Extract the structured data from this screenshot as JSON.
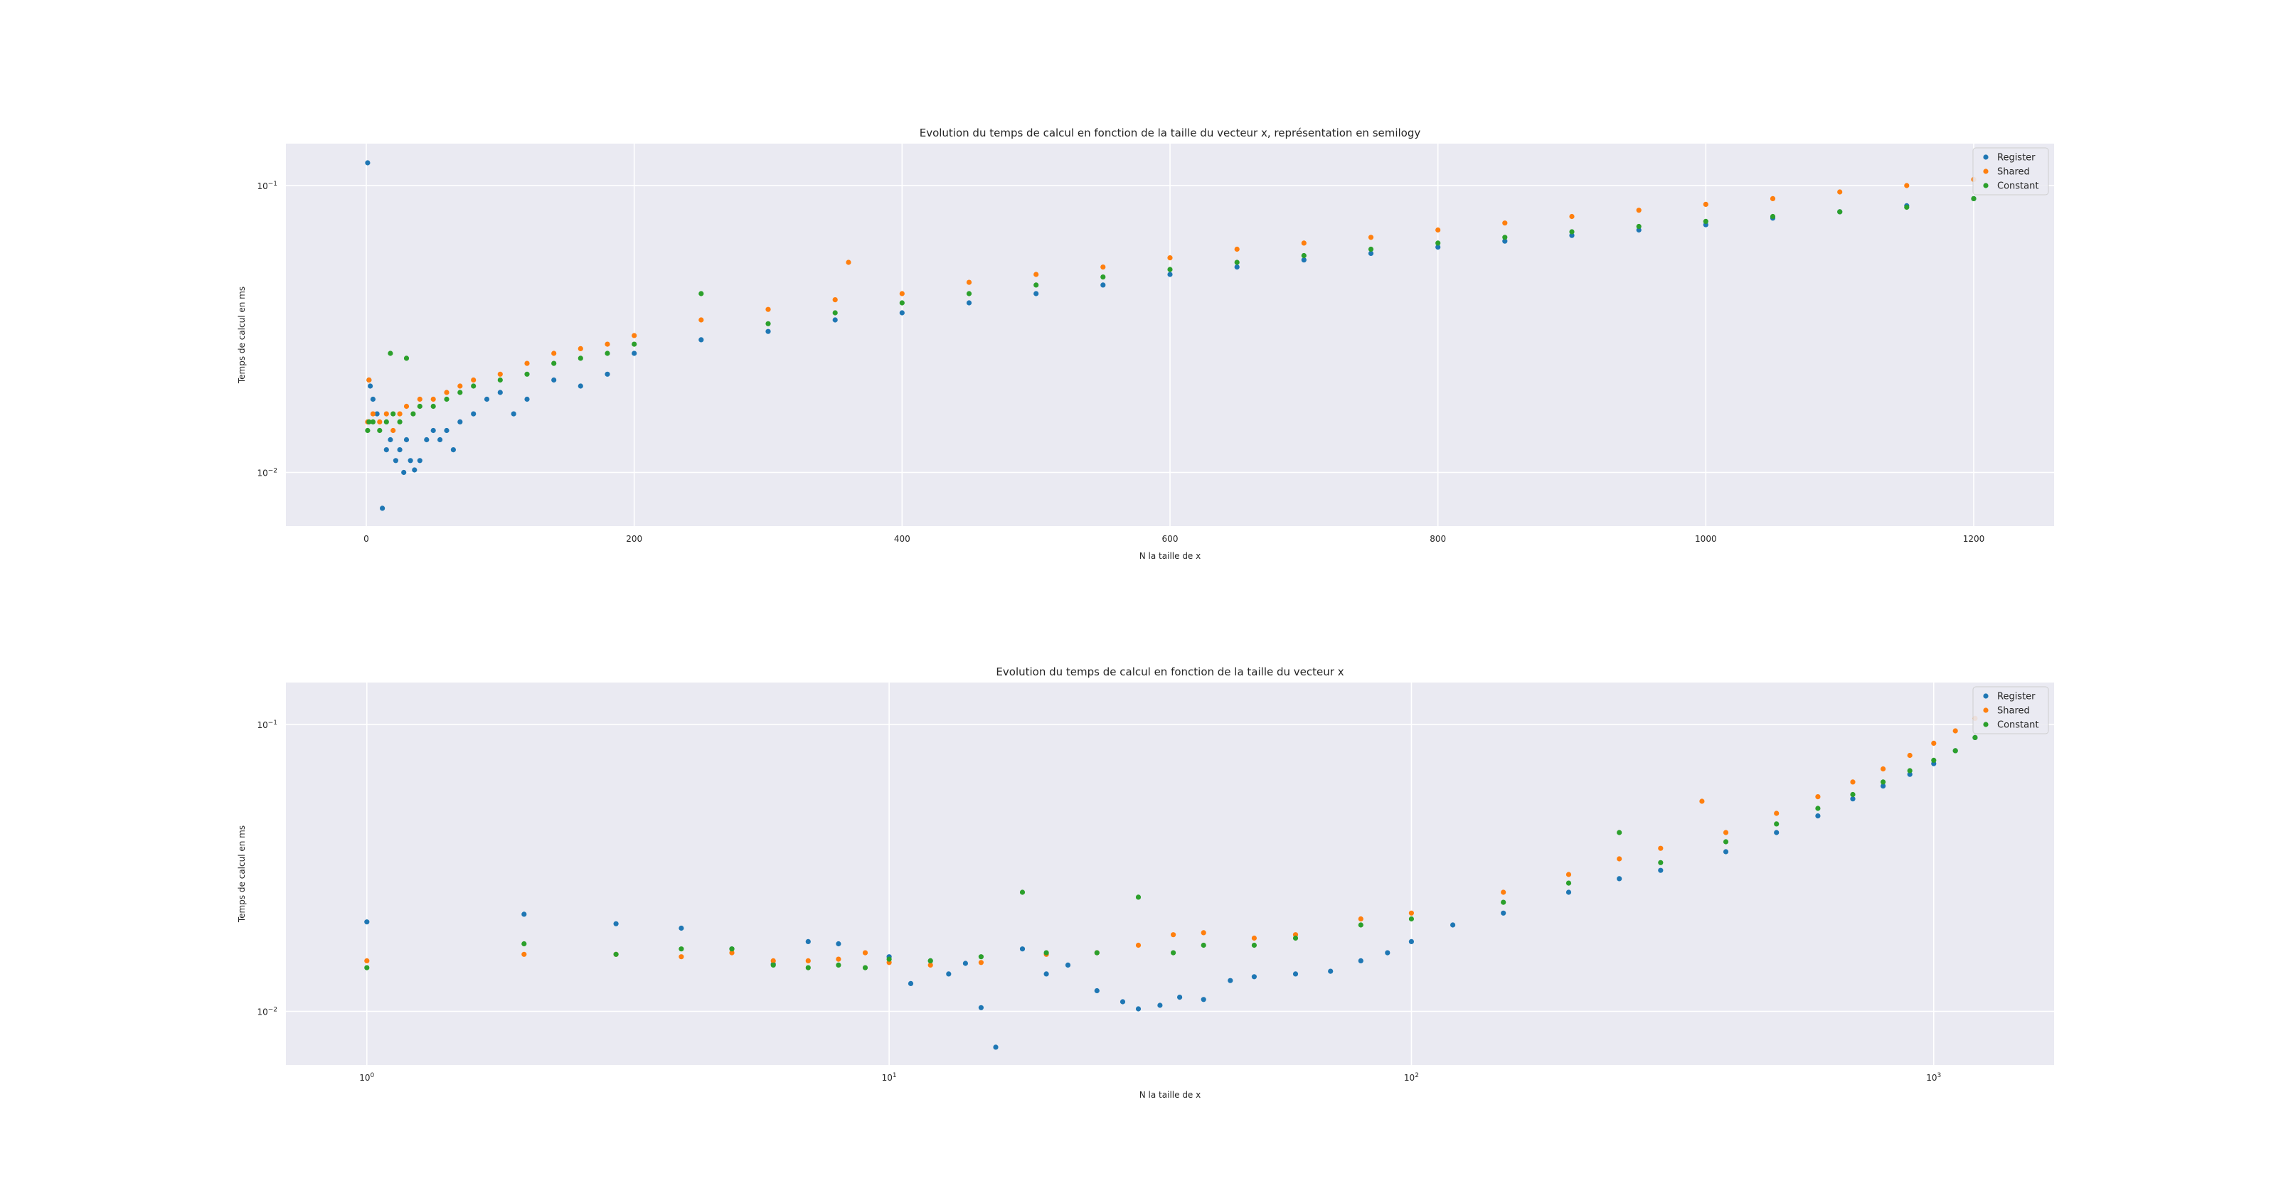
{
  "colors": {
    "background": "#ffffff",
    "plot_background": "#eaeaf2",
    "grid": "#ffffff",
    "text": "#262626",
    "register": "#1f77b4",
    "shared": "#ff7f0e",
    "constant": "#2ca02c"
  },
  "chart_data": [
    {
      "type": "scatter",
      "title": "Evolution du temps de calcul en fonction de la taille du vecteur x, représentation en semilogy",
      "xlabel": "N la taille de x",
      "ylabel": "Temps de calcul en ms",
      "xscale": "linear",
      "yscale": "log",
      "xlim": [
        -60,
        1260
      ],
      "ylim": [
        0.0065,
        0.14
      ],
      "xticks": [
        0,
        200,
        400,
        600,
        800,
        1000,
        1200
      ],
      "xtick_labels": [
        "0",
        "200",
        "400",
        "600",
        "800",
        "1000",
        "1200"
      ],
      "yticks": [
        0.01,
        0.1
      ],
      "ytick_labels": [
        {
          "base": "10",
          "exp": "−2"
        },
        {
          "base": "10",
          "exp": "−1"
        }
      ],
      "grid": true,
      "legend_position": "top-right",
      "series": [
        {
          "name": "Register",
          "color": "#1f77b4",
          "x": [
            1,
            2,
            3,
            5,
            8,
            12,
            15,
            18,
            22,
            25,
            28,
            30,
            33,
            36,
            40,
            45,
            50,
            55,
            60,
            65,
            70,
            80,
            90,
            100,
            110,
            120,
            140,
            160,
            180,
            200,
            250,
            300,
            350,
            400,
            450,
            500,
            550,
            600,
            650,
            700,
            750,
            800,
            850,
            900,
            950,
            1000,
            1050,
            1100,
            1150,
            1200
          ],
          "y": [
            0.12,
            0.021,
            0.02,
            0.018,
            0.016,
            0.0075,
            0.012,
            0.013,
            0.011,
            0.012,
            0.01,
            0.013,
            0.011,
            0.0102,
            0.011,
            0.013,
            0.014,
            0.013,
            0.014,
            0.012,
            0.015,
            0.016,
            0.018,
            0.019,
            0.016,
            0.018,
            0.021,
            0.02,
            0.022,
            0.026,
            0.029,
            0.031,
            0.034,
            0.036,
            0.039,
            0.042,
            0.045,
            0.049,
            0.052,
            0.055,
            0.058,
            0.061,
            0.064,
            0.067,
            0.07,
            0.073,
            0.077,
            0.081,
            0.085,
            0.09
          ]
        },
        {
          "name": "Shared",
          "color": "#ff7f0e",
          "x": [
            1,
            2,
            5,
            10,
            15,
            20,
            25,
            30,
            40,
            50,
            60,
            70,
            80,
            100,
            120,
            140,
            160,
            180,
            200,
            250,
            300,
            350,
            360,
            400,
            450,
            500,
            550,
            600,
            650,
            700,
            750,
            800,
            850,
            900,
            950,
            1000,
            1050,
            1100,
            1150,
            1200
          ],
          "y": [
            0.015,
            0.021,
            0.016,
            0.015,
            0.016,
            0.014,
            0.016,
            0.017,
            0.018,
            0.018,
            0.019,
            0.02,
            0.021,
            0.022,
            0.024,
            0.026,
            0.027,
            0.028,
            0.03,
            0.034,
            0.037,
            0.04,
            0.054,
            0.042,
            0.046,
            0.049,
            0.052,
            0.056,
            0.06,
            0.063,
            0.066,
            0.07,
            0.074,
            0.078,
            0.082,
            0.086,
            0.09,
            0.095,
            0.1,
            0.105
          ]
        },
        {
          "name": "Constant",
          "color": "#2ca02c",
          "x": [
            1,
            2,
            5,
            10,
            15,
            18,
            20,
            25,
            30,
            35,
            40,
            50,
            60,
            70,
            80,
            100,
            120,
            140,
            160,
            180,
            200,
            250,
            300,
            350,
            400,
            450,
            500,
            550,
            600,
            650,
            700,
            750,
            800,
            850,
            900,
            950,
            1000,
            1050,
            1100,
            1150,
            1200
          ],
          "y": [
            0.014,
            0.015,
            0.015,
            0.014,
            0.015,
            0.026,
            0.016,
            0.015,
            0.025,
            0.016,
            0.017,
            0.017,
            0.018,
            0.019,
            0.02,
            0.021,
            0.022,
            0.024,
            0.025,
            0.026,
            0.028,
            0.042,
            0.033,
            0.036,
            0.039,
            0.042,
            0.045,
            0.048,
            0.051,
            0.054,
            0.057,
            0.06,
            0.063,
            0.066,
            0.069,
            0.072,
            0.075,
            0.078,
            0.081,
            0.084,
            0.09
          ]
        }
      ]
    },
    {
      "type": "scatter",
      "title": "Evolution du temps de calcul en fonction de la taille du vecteur x",
      "xlabel": "N la taille de x",
      "ylabel": "Temps de calcul en ms",
      "xscale": "log",
      "yscale": "log",
      "xlim": [
        0.7,
        1700
      ],
      "ylim": [
        0.0065,
        0.14
      ],
      "xticks": [
        1,
        10,
        100,
        1000
      ],
      "xtick_labels": [
        {
          "base": "10",
          "exp": "0"
        },
        {
          "base": "10",
          "exp": "1"
        },
        {
          "base": "10",
          "exp": "2"
        },
        {
          "base": "10",
          "exp": "3"
        }
      ],
      "yticks": [
        0.01,
        0.1
      ],
      "ytick_labels": [
        {
          "base": "10",
          "exp": "−2"
        },
        {
          "base": "10",
          "exp": "−1"
        }
      ],
      "grid": true,
      "legend_position": "top-right",
      "series": [
        {
          "name": "Register",
          "color": "#1f77b4",
          "x": [
            1,
            2,
            3,
            4,
            5,
            6,
            7,
            8,
            10,
            11,
            12,
            13,
            14,
            15,
            16,
            18,
            20,
            22,
            25,
            28,
            30,
            33,
            36,
            40,
            45,
            50,
            60,
            70,
            80,
            90,
            100,
            120,
            150,
            200,
            250,
            300,
            400,
            500,
            600,
            700,
            800,
            900,
            1000,
            1100,
            1200
          ],
          "y": [
            0.0205,
            0.0218,
            0.0202,
            0.0195,
            0.0165,
            0.0146,
            0.0175,
            0.0172,
            0.0155,
            0.0125,
            0.015,
            0.0135,
            0.0147,
            0.0103,
            0.0075,
            0.0165,
            0.0135,
            0.0145,
            0.0118,
            0.0108,
            0.0102,
            0.0105,
            0.0112,
            0.011,
            0.0128,
            0.0132,
            0.0135,
            0.0138,
            0.015,
            0.016,
            0.0175,
            0.02,
            0.022,
            0.026,
            0.029,
            0.031,
            0.036,
            0.042,
            0.048,
            0.055,
            0.061,
            0.067,
            0.073,
            0.081,
            0.09
          ]
        },
        {
          "name": "Shared",
          "color": "#ff7f0e",
          "x": [
            1,
            2,
            3,
            4,
            5,
            6,
            7,
            8,
            9,
            10,
            12,
            15,
            20,
            25,
            30,
            35,
            40,
            50,
            60,
            80,
            100,
            150,
            200,
            250,
            300,
            360,
            400,
            500,
            600,
            700,
            800,
            900,
            1000,
            1100,
            1200
          ],
          "y": [
            0.015,
            0.0158,
            0.0158,
            0.0155,
            0.016,
            0.015,
            0.015,
            0.0152,
            0.016,
            0.0148,
            0.0145,
            0.0148,
            0.0158,
            0.016,
            0.017,
            0.0185,
            0.0188,
            0.018,
            0.0185,
            0.021,
            0.022,
            0.026,
            0.03,
            0.034,
            0.037,
            0.054,
            0.042,
            0.049,
            0.056,
            0.063,
            0.07,
            0.078,
            0.086,
            0.095,
            0.105
          ]
        },
        {
          "name": "Constant",
          "color": "#2ca02c",
          "x": [
            1,
            2,
            3,
            4,
            5,
            6,
            7,
            8,
            9,
            10,
            12,
            15,
            18,
            20,
            25,
            30,
            35,
            40,
            50,
            60,
            80,
            100,
            150,
            200,
            250,
            300,
            400,
            500,
            600,
            700,
            800,
            900,
            1000,
            1100,
            1200
          ],
          "y": [
            0.0142,
            0.0172,
            0.0158,
            0.0165,
            0.0165,
            0.0145,
            0.0142,
            0.0145,
            0.0142,
            0.0152,
            0.015,
            0.0155,
            0.026,
            0.016,
            0.016,
            0.025,
            0.016,
            0.017,
            0.017,
            0.018,
            0.02,
            0.021,
            0.024,
            0.028,
            0.042,
            0.033,
            0.039,
            0.045,
            0.051,
            0.057,
            0.063,
            0.069,
            0.075,
            0.081,
            0.09
          ]
        }
      ]
    }
  ]
}
